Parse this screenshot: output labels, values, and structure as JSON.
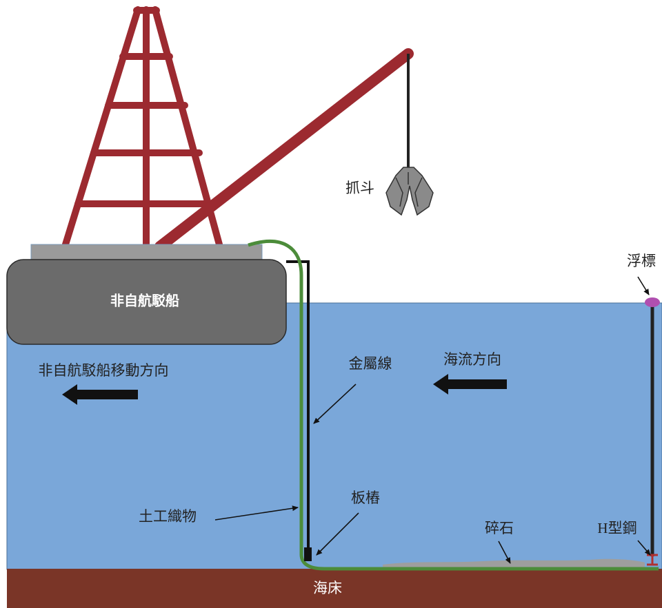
{
  "labels": {
    "grab": "抓斗",
    "buoy": "浮標",
    "barge": "非自航駁船",
    "barge_direction": "非自航駁船移動方向",
    "wire": "金屬線",
    "current_direction": "海流方向",
    "geotextile": "土工織物",
    "sheet_pile": "板樁",
    "gravel": "碎石",
    "h_steel": "H型鋼",
    "seabed": "海床"
  }
}
